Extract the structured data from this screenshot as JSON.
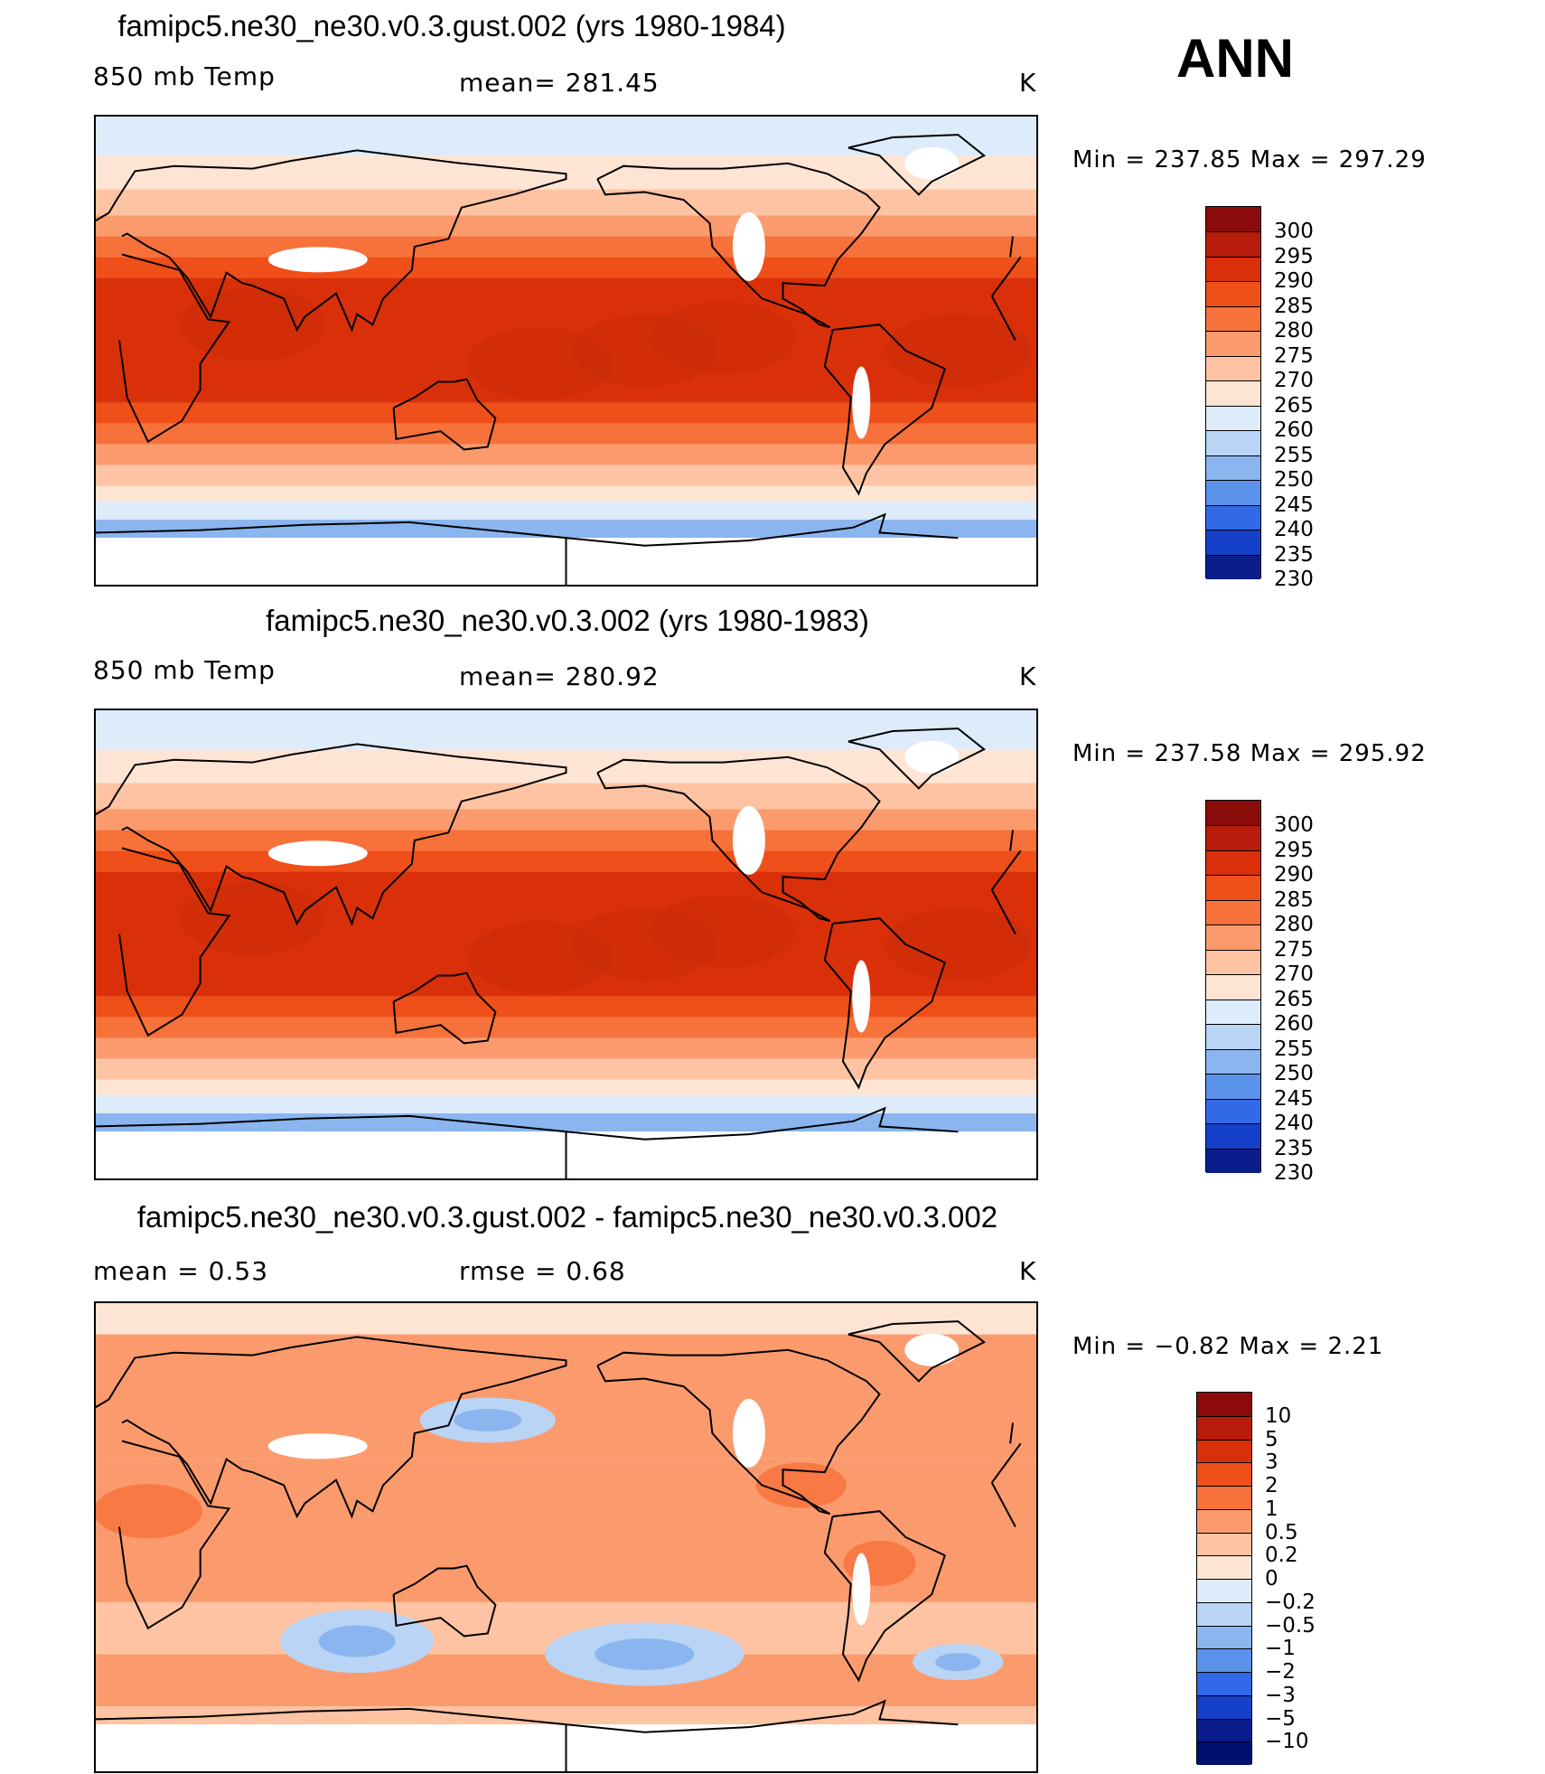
{
  "season": "ANN",
  "units": "K",
  "panels": [
    {
      "title": "famipc5.ne30_ne30.v0.3.gust.002 (yrs 1980-1984)",
      "variable": "850 mb Temp",
      "stat_left": "",
      "stat_center": "mean=  281.45",
      "units": "K",
      "minmax": "Min  =  237.85  Max  =  297.29",
      "colorbar": {
        "labels": [
          "300",
          "295",
          "290",
          "285",
          "280",
          "275",
          "270",
          "265",
          "260",
          "255",
          "250",
          "245",
          "240",
          "235",
          "230"
        ],
        "colors": [
          "#8b0a0a",
          "#b81c0a",
          "#d9300a",
          "#ef4f18",
          "#f7713a",
          "#fb9b6d",
          "#fdc3a2",
          "#fee4d3",
          "#ddebfa",
          "#b9d4f4",
          "#8ab5ef",
          "#5b93ea",
          "#3169e6",
          "#1540c9",
          "#0a1d8a"
        ]
      }
    },
    {
      "title": "famipc5.ne30_ne30.v0.3.002 (yrs 1980-1983)",
      "variable": "850 mb Temp",
      "stat_left": "",
      "stat_center": "mean=  280.92",
      "units": "K",
      "minmax": "Min  =  237.58  Max  =  295.92",
      "colorbar": {
        "labels": [
          "300",
          "295",
          "290",
          "285",
          "280",
          "275",
          "270",
          "265",
          "260",
          "255",
          "250",
          "245",
          "240",
          "235",
          "230"
        ],
        "colors": [
          "#8b0a0a",
          "#b81c0a",
          "#d9300a",
          "#ef4f18",
          "#f7713a",
          "#fb9b6d",
          "#fdc3a2",
          "#fee4d3",
          "#ddebfa",
          "#b9d4f4",
          "#8ab5ef",
          "#5b93ea",
          "#3169e6",
          "#1540c9",
          "#0a1d8a"
        ]
      }
    },
    {
      "title": "famipc5.ne30_ne30.v0.3.gust.002 - famipc5.ne30_ne30.v0.3.002",
      "variable": "",
      "stat_left": "mean =     0.53",
      "stat_center": "rmse =     0.68",
      "units": "K",
      "minmax": "Min  =    −0.82  Max  =      2.21",
      "colorbar": {
        "labels": [
          "10",
          "5",
          "3",
          "2",
          "1",
          "0.5",
          "0.2",
          "0",
          "−0.2",
          "−0.5",
          "−1",
          "−2",
          "−3",
          "−5",
          "−10"
        ],
        "colors": [
          "#8b0a0a",
          "#b81c0a",
          "#d9300a",
          "#ef4f18",
          "#f7713a",
          "#fb9b6d",
          "#fdc3a2",
          "#fee4d3",
          "#ddebfa",
          "#b9d4f4",
          "#8ab5ef",
          "#5b93ea",
          "#3169e6",
          "#1540c9",
          "#0a1d8a",
          "#000e6e"
        ]
      }
    }
  ],
  "map_layers": {
    "temperature": [
      {
        "lat_top": 90,
        "lat_bottom": 75,
        "color": "#ddebfa"
      },
      {
        "lat_top": 75,
        "lat_bottom": 62,
        "color": "#fee4d3"
      },
      {
        "lat_top": 62,
        "lat_bottom": 52,
        "color": "#fdc3a2"
      },
      {
        "lat_top": 52,
        "lat_bottom": 44,
        "color": "#fb9b6d"
      },
      {
        "lat_top": 44,
        "lat_bottom": 36,
        "color": "#f7713a"
      },
      {
        "lat_top": 36,
        "lat_bottom": 28,
        "color": "#ef4f18"
      },
      {
        "lat_top": 28,
        "lat_bottom": -20,
        "color": "#d9300a"
      },
      {
        "lat_top": -20,
        "lat_bottom": -28,
        "color": "#ef4f18"
      },
      {
        "lat_top": -28,
        "lat_bottom": -36,
        "color": "#f7713a"
      },
      {
        "lat_top": -36,
        "lat_bottom": -44,
        "color": "#fb9b6d"
      },
      {
        "lat_top": -44,
        "lat_bottom": -52,
        "color": "#fdc3a2"
      },
      {
        "lat_top": -52,
        "lat_bottom": -58,
        "color": "#fee4d3"
      },
      {
        "lat_top": -58,
        "lat_bottom": -65,
        "color": "#ddebfa"
      },
      {
        "lat_top": -65,
        "lat_bottom": -72,
        "color": "#8ab5ef"
      },
      {
        "lat_top": -72,
        "lat_bottom": -90,
        "color": "#ffffff"
      }
    ],
    "difference": [
      {
        "lat_top": 90,
        "lat_bottom": 78,
        "color": "#fee4d3"
      },
      {
        "lat_top": 78,
        "lat_bottom": 30,
        "color": "#fb9b6d"
      },
      {
        "lat_top": 30,
        "lat_bottom": -25,
        "color": "#fb9b6d"
      },
      {
        "lat_top": -25,
        "lat_bottom": -45,
        "color": "#fdc3a2"
      },
      {
        "lat_top": -45,
        "lat_bottom": -65,
        "color": "#fb9b6d"
      },
      {
        "lat_top": -65,
        "lat_bottom": -72,
        "color": "#fdc3a2"
      },
      {
        "lat_top": -72,
        "lat_bottom": -90,
        "color": "#ffffff"
      }
    ]
  }
}
